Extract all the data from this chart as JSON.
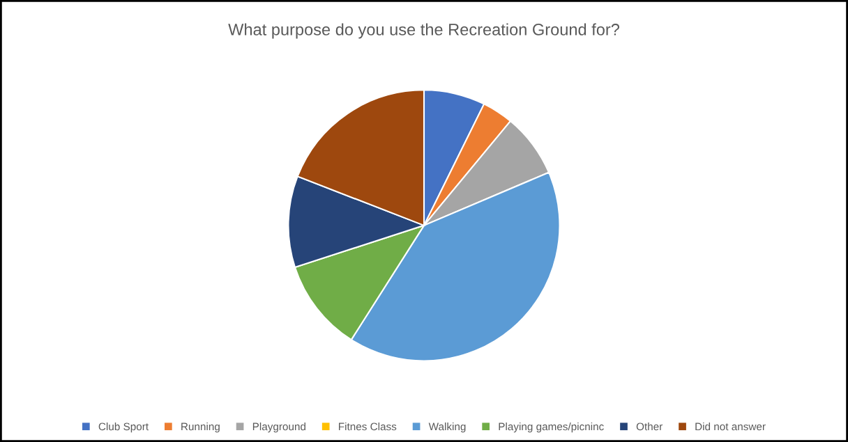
{
  "chart_data": {
    "type": "pie",
    "title": "What purpose do you use the Recreation Ground for?",
    "categories": [
      "Club Sport",
      "Running",
      "Playground",
      "Fitnes Class",
      "Walking",
      "Playing games/picninc",
      "Other",
      "Did not answer"
    ],
    "values": [
      7.3,
      3.7,
      7.6,
      0,
      40.4,
      11,
      10.9,
      19.1
    ],
    "colors": [
      "#4472c4",
      "#ed7d31",
      "#a5a5a5",
      "#ffc000",
      "#5b9bd5",
      "#70ad47",
      "#264478",
      "#9e480e"
    ],
    "legend": "bottom"
  }
}
